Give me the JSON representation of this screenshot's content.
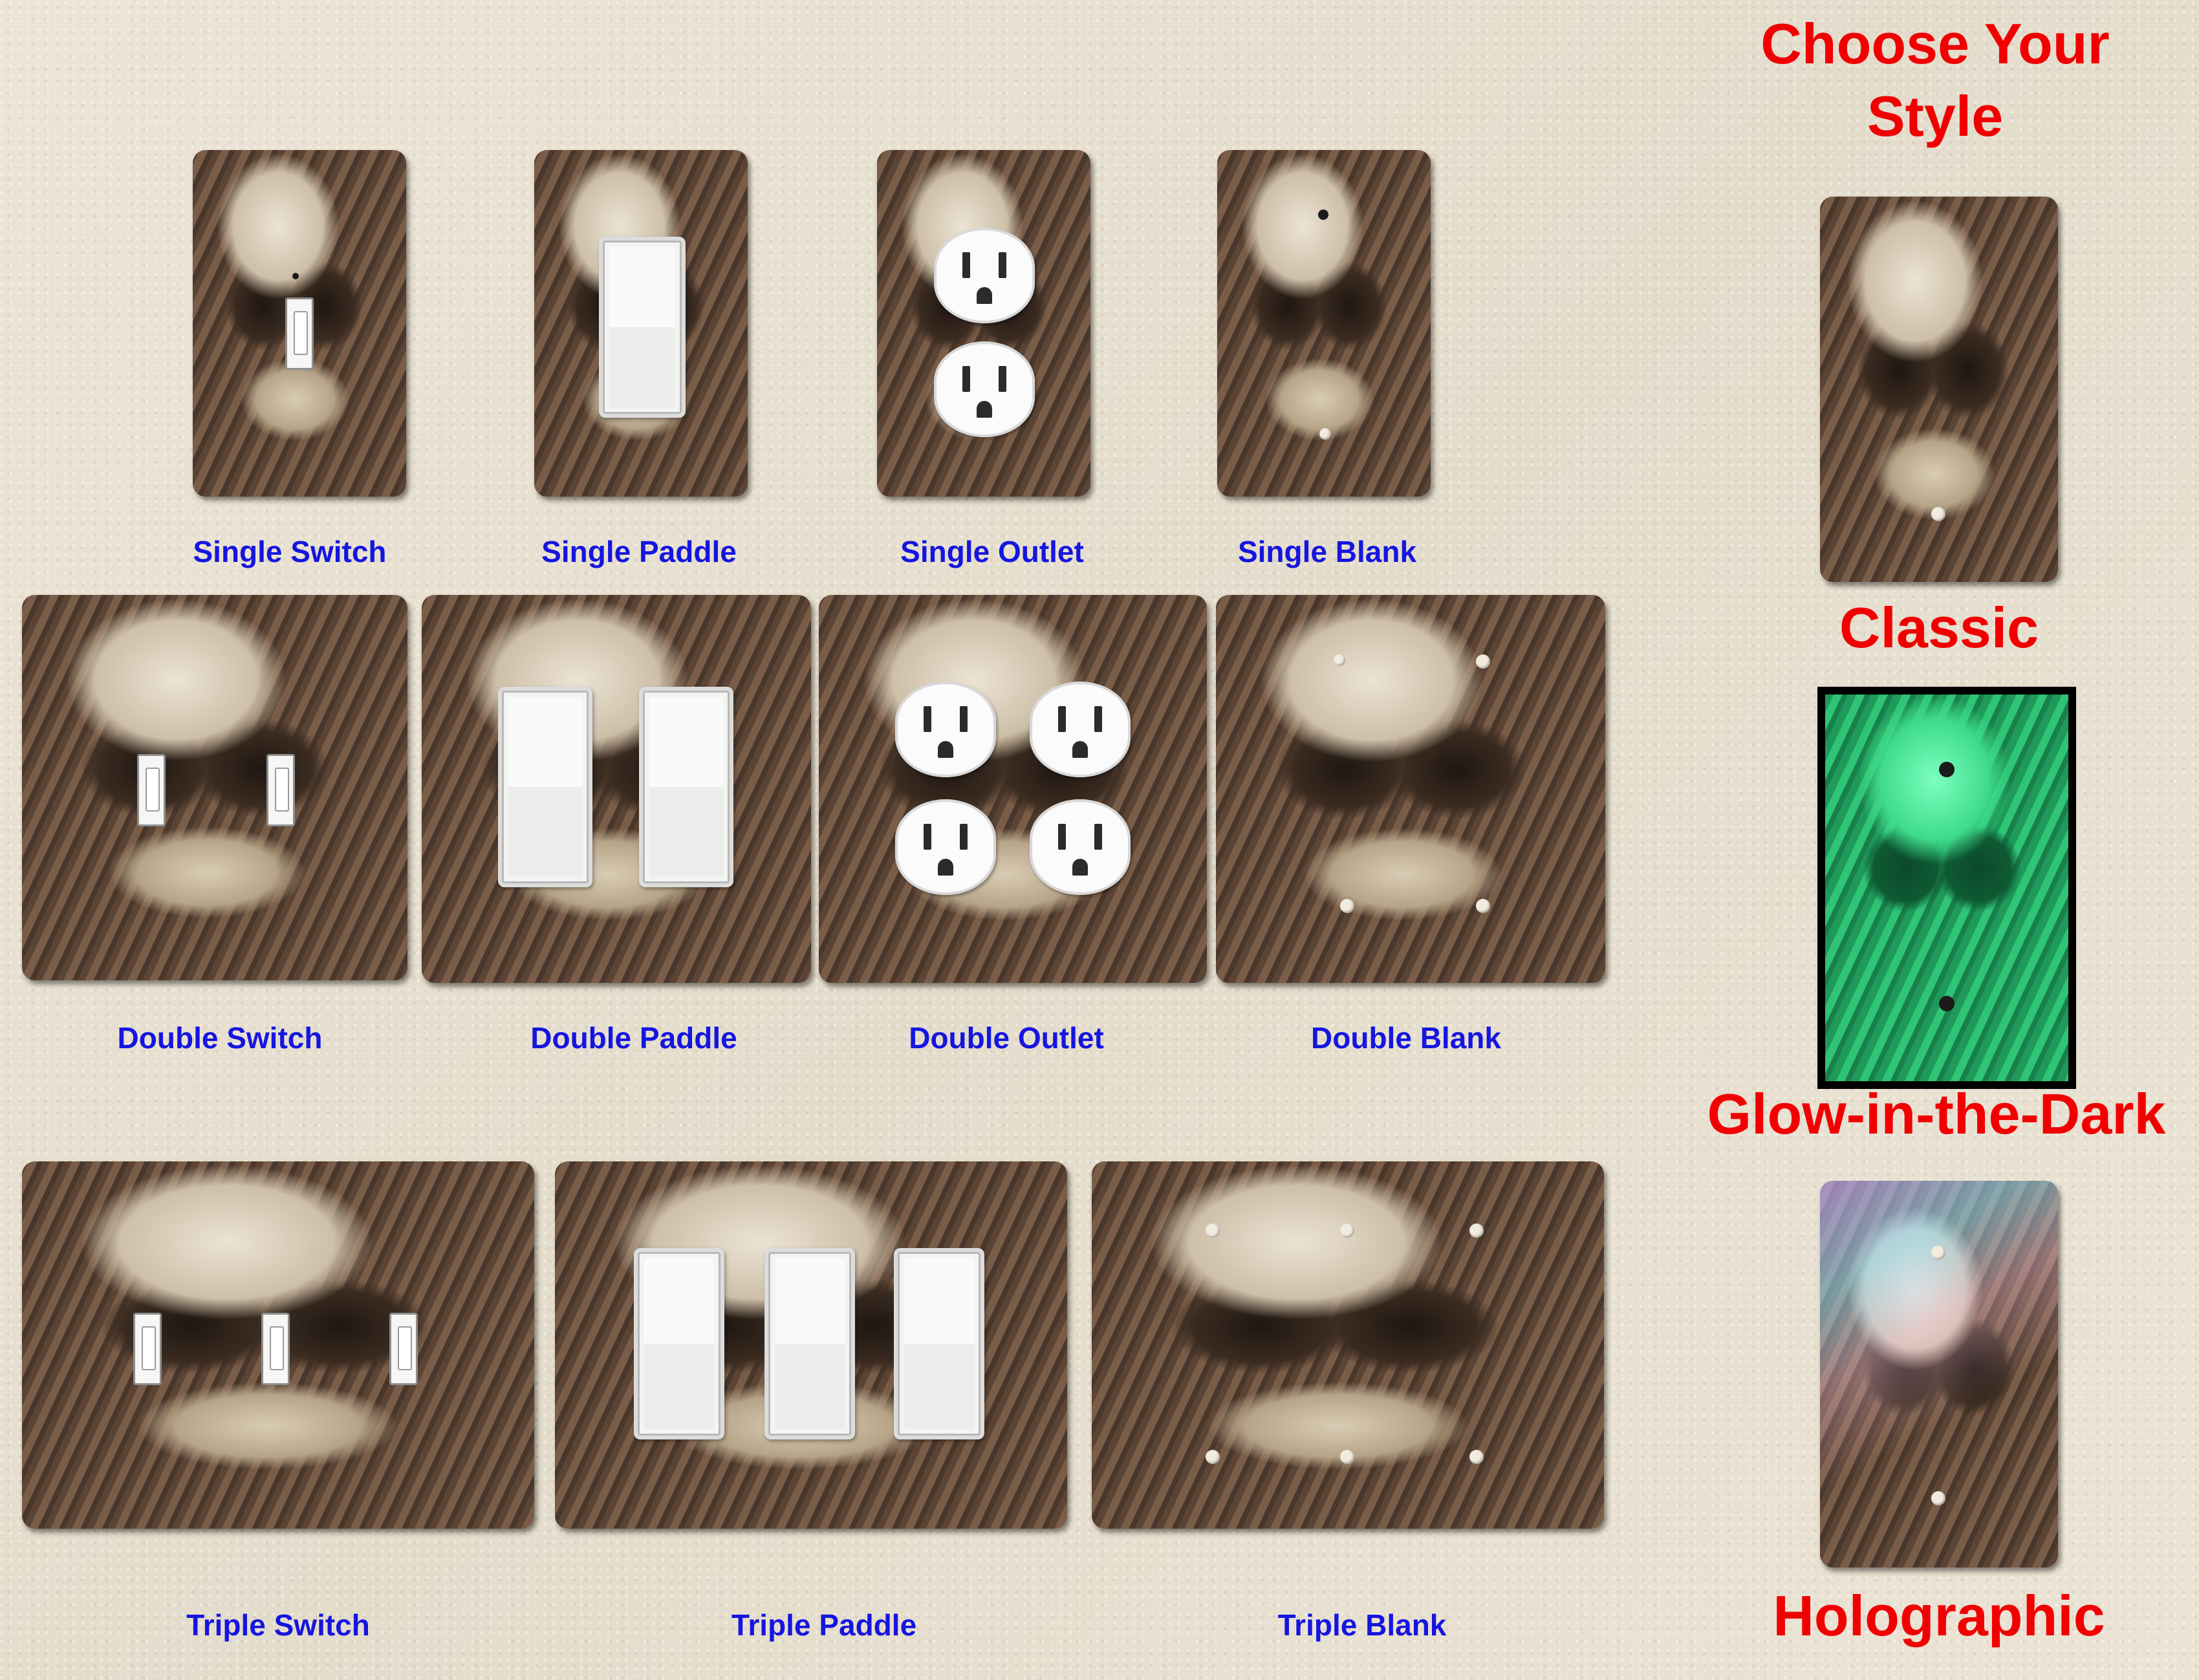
{
  "header": {
    "title_line1": "Choose Your",
    "title_line2": "Style"
  },
  "single_row": {
    "switch": "Single Switch",
    "paddle": "Single Paddle",
    "outlet": "Single Outlet",
    "blank": "Single Blank"
  },
  "double_row": {
    "switch": "Double Switch",
    "paddle": "Double Paddle",
    "outlet": "Double Outlet",
    "blank": "Double Blank"
  },
  "triple_row": {
    "switch": "Triple Switch",
    "paddle": "Triple Paddle",
    "blank": "Triple Blank"
  },
  "styles": {
    "classic": "Classic",
    "glow": "Glow-in-the-Dark",
    "holo": "Holographic"
  },
  "colors": {
    "label_blue": "#1515e0",
    "heading_red": "#f00000",
    "glow_green": "#3fdc8a"
  }
}
